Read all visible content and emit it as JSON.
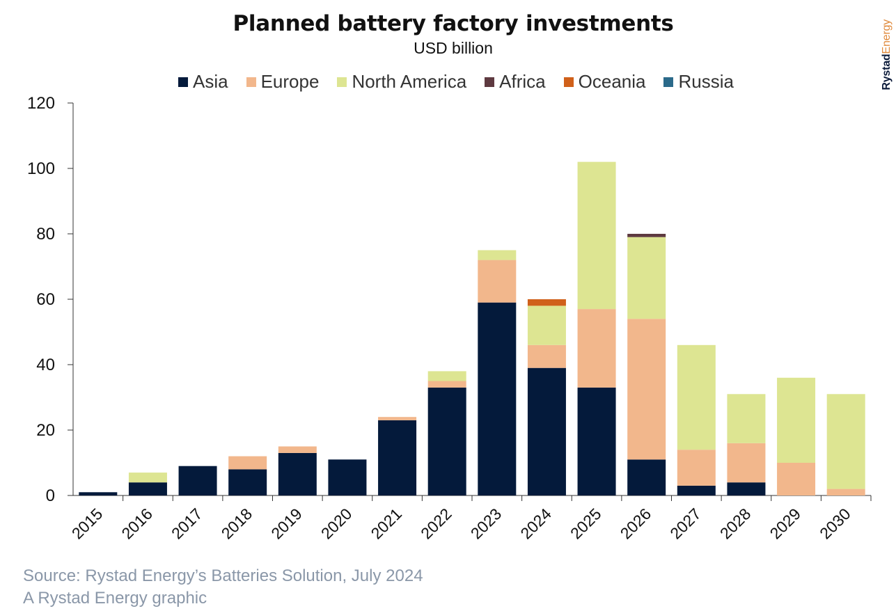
{
  "header": {
    "title": "Planned battery factory investments",
    "subtitle": "USD billion"
  },
  "brand": {
    "main": "Rystad",
    "accent": "Energy"
  },
  "footer": {
    "source": "Source: Rystad Energy’s Batteries Solution, July 2024",
    "credit": "A Rystad Energy graphic"
  },
  "chart_data": {
    "type": "bar",
    "stacked": true,
    "title": "Planned battery factory investments",
    "subtitle": "USD billion",
    "categories": [
      "2015",
      "2016",
      "2017",
      "2018",
      "2019",
      "2020",
      "2021",
      "2022",
      "2023",
      "2024",
      "2025",
      "2026",
      "2027",
      "2028",
      "2029",
      "2030"
    ],
    "series": [
      {
        "name": "Asia",
        "color": "#041a3b",
        "values": [
          1,
          4,
          9,
          8,
          13,
          11,
          23,
          33,
          59,
          39,
          33,
          11,
          3,
          4,
          0,
          0
        ]
      },
      {
        "name": "Europe",
        "color": "#f2b78c",
        "values": [
          0,
          0,
          0,
          4,
          2,
          0,
          1,
          2,
          13,
          7,
          24,
          43,
          11,
          12,
          10,
          2
        ]
      },
      {
        "name": "North America",
        "color": "#dde592",
        "values": [
          0,
          3,
          0,
          0,
          0,
          0,
          0,
          3,
          3,
          12,
          45,
          25,
          32,
          15,
          26,
          29
        ]
      },
      {
        "name": "Africa",
        "color": "#5e3a40",
        "values": [
          0,
          0,
          0,
          0,
          0,
          0,
          0,
          0,
          0,
          0,
          0,
          1,
          0,
          0,
          0,
          0
        ]
      },
      {
        "name": "Oceania",
        "color": "#d0601a",
        "values": [
          0,
          0,
          0,
          0,
          0,
          0,
          0,
          0,
          0,
          2,
          0,
          0,
          0,
          0,
          0,
          0
        ]
      },
      {
        "name": "Russia",
        "color": "#2b6a8a",
        "values": [
          0,
          0,
          0,
          0,
          0,
          0,
          0,
          0,
          0,
          0,
          0,
          0,
          0,
          0,
          0,
          0
        ]
      }
    ],
    "yticks": [
      0,
      20,
      40,
      60,
      80,
      100,
      120
    ],
    "ylim": [
      0,
      120
    ],
    "legend_position": "top",
    "grid": false
  }
}
